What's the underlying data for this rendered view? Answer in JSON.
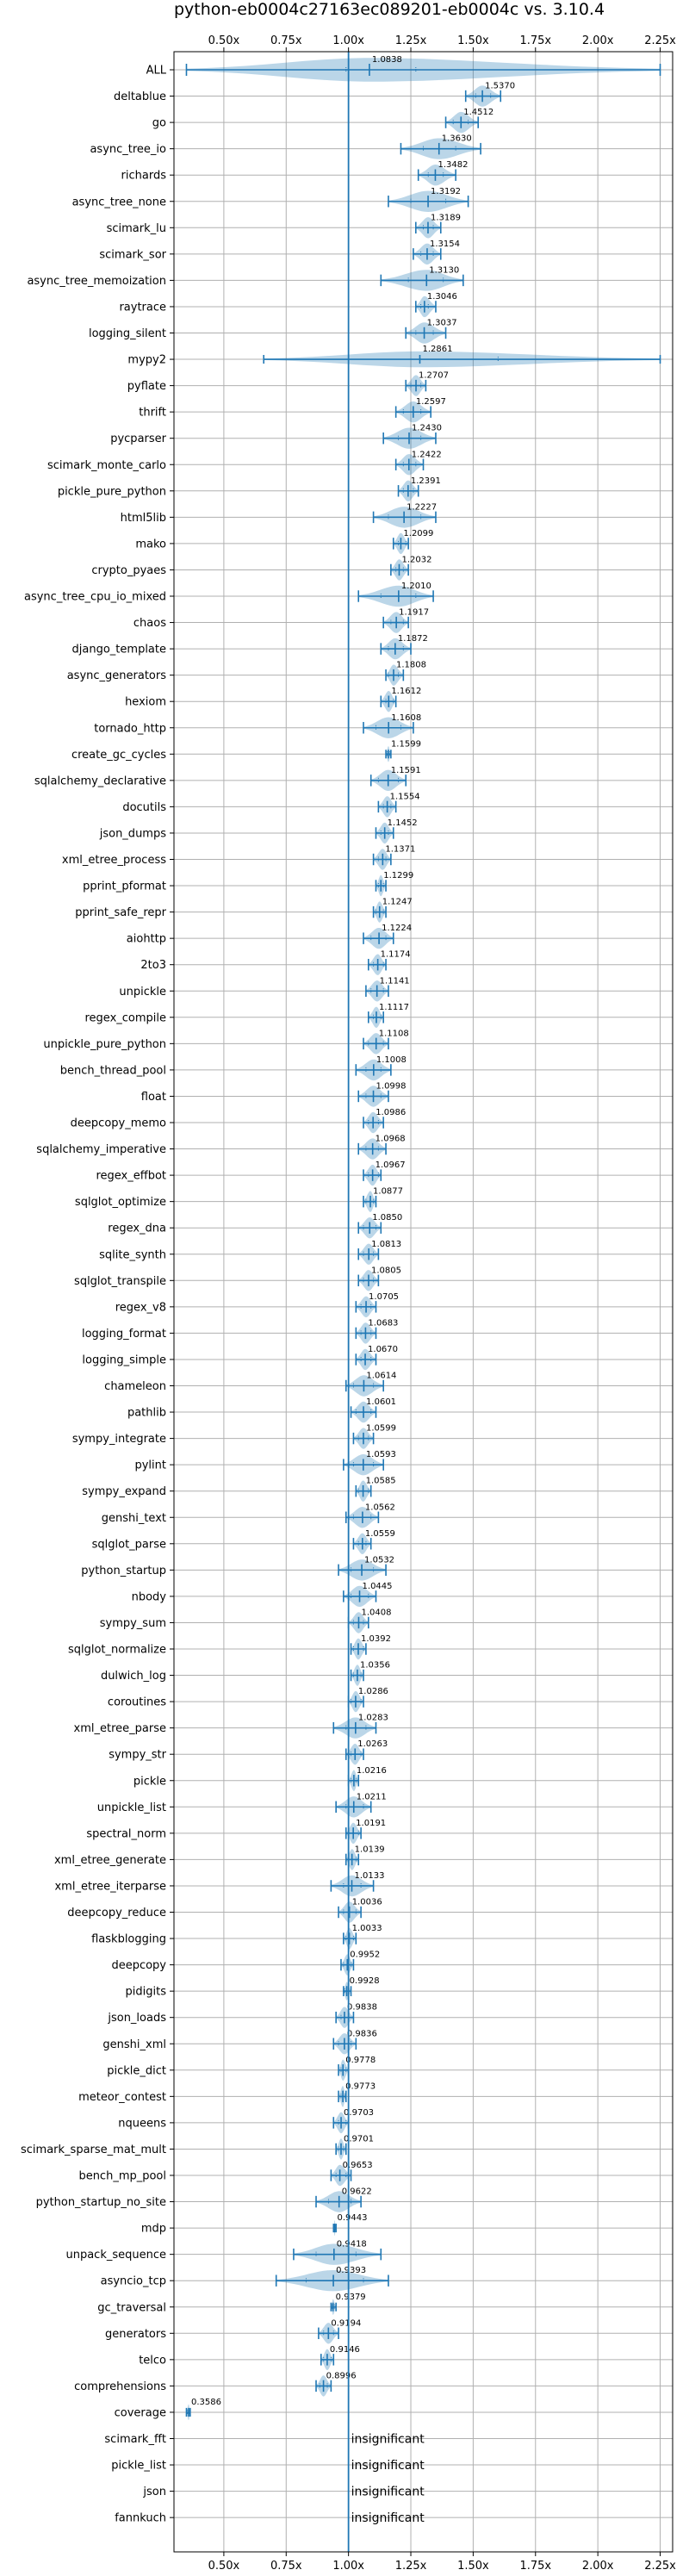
{
  "chart_data": {
    "type": "violin",
    "title": "python-eb0004c27163ec089201-eb0004c vs. 3.10.4",
    "xlim": [
      0.3,
      2.3
    ],
    "x_ticks": [
      0.5,
      0.75,
      1.0,
      1.25,
      1.5,
      1.75,
      2.0,
      2.25
    ],
    "x_tick_labels": [
      "0.50x",
      "0.75x",
      "1.00x",
      "1.25x",
      "1.50x",
      "1.75x",
      "2.00x",
      "2.25x"
    ],
    "reference_line": 1.0,
    "grid": true,
    "insignificant_label": "insignificant",
    "benchmarks": [
      {
        "name": "ALL",
        "median": "1.0838",
        "min": 0.35,
        "max": 2.25,
        "q1": 0.99,
        "q3": 1.27,
        "w": 0.9
      },
      {
        "name": "deltablue",
        "median": "1.5370",
        "min": 1.47,
        "max": 1.61,
        "q1": 1.51,
        "q3": 1.57,
        "w": 0.8
      },
      {
        "name": "go",
        "median": "1.4512",
        "min": 1.39,
        "max": 1.52,
        "q1": 1.42,
        "q3": 1.48,
        "w": 0.8
      },
      {
        "name": "async_tree_io",
        "median": "1.3630",
        "min": 1.21,
        "max": 1.53,
        "q1": 1.3,
        "q3": 1.43,
        "w": 0.8
      },
      {
        "name": "richards",
        "median": "1.3482",
        "min": 1.28,
        "max": 1.43,
        "q1": 1.32,
        "q3": 1.38,
        "w": 0.8
      },
      {
        "name": "async_tree_none",
        "median": "1.3192",
        "min": 1.16,
        "max": 1.48,
        "q1": 1.25,
        "q3": 1.39,
        "w": 0.8
      },
      {
        "name": "scimark_lu",
        "median": "1.3189",
        "min": 1.27,
        "max": 1.37,
        "q1": 1.3,
        "q3": 1.34,
        "w": 0.8
      },
      {
        "name": "scimark_sor",
        "median": "1.3154",
        "min": 1.26,
        "max": 1.37,
        "q1": 1.29,
        "q3": 1.34,
        "w": 0.8
      },
      {
        "name": "async_tree_memoization",
        "median": "1.3130",
        "min": 1.13,
        "max": 1.46,
        "q1": 1.24,
        "q3": 1.38,
        "w": 0.8
      },
      {
        "name": "raytrace",
        "median": "1.3046",
        "min": 1.27,
        "max": 1.35,
        "q1": 1.29,
        "q3": 1.32,
        "w": 0.8
      },
      {
        "name": "logging_silent",
        "median": "1.3037",
        "min": 1.23,
        "max": 1.39,
        "q1": 1.27,
        "q3": 1.34,
        "w": 0.8
      },
      {
        "name": "mypy2",
        "median": "1.2861",
        "min": 0.66,
        "max": 2.25,
        "q1": 1.0,
        "q3": 1.6,
        "w": 0.6
      },
      {
        "name": "pyflate",
        "median": "1.2707",
        "min": 1.23,
        "max": 1.31,
        "q1": 1.25,
        "q3": 1.29,
        "w": 0.8
      },
      {
        "name": "thrift",
        "median": "1.2597",
        "min": 1.19,
        "max": 1.33,
        "q1": 1.22,
        "q3": 1.29,
        "w": 0.8
      },
      {
        "name": "pycparser",
        "median": "1.2430",
        "min": 1.14,
        "max": 1.35,
        "q1": 1.2,
        "q3": 1.29,
        "w": 0.8
      },
      {
        "name": "scimark_monte_carlo",
        "median": "1.2422",
        "min": 1.19,
        "max": 1.3,
        "q1": 1.22,
        "q3": 1.27,
        "w": 0.8
      },
      {
        "name": "pickle_pure_python",
        "median": "1.2391",
        "min": 1.2,
        "max": 1.28,
        "q1": 1.22,
        "q3": 1.26,
        "w": 0.8
      },
      {
        "name": "html5lib",
        "median": "1.2227",
        "min": 1.1,
        "max": 1.35,
        "q1": 1.16,
        "q3": 1.29,
        "w": 0.8
      },
      {
        "name": "mako",
        "median": "1.2099",
        "min": 1.18,
        "max": 1.24,
        "q1": 1.2,
        "q3": 1.23,
        "w": 0.8
      },
      {
        "name": "crypto_pyaes",
        "median": "1.2032",
        "min": 1.17,
        "max": 1.24,
        "q1": 1.19,
        "q3": 1.22,
        "w": 0.8
      },
      {
        "name": "async_tree_cpu_io_mixed",
        "median": "1.2010",
        "min": 1.04,
        "max": 1.34,
        "q1": 1.13,
        "q3": 1.27,
        "w": 0.8
      },
      {
        "name": "chaos",
        "median": "1.1917",
        "min": 1.14,
        "max": 1.24,
        "q1": 1.17,
        "q3": 1.22,
        "w": 0.8
      },
      {
        "name": "django_template",
        "median": "1.1872",
        "min": 1.13,
        "max": 1.25,
        "q1": 1.16,
        "q3": 1.22,
        "w": 0.8
      },
      {
        "name": "async_generators",
        "median": "1.1808",
        "min": 1.15,
        "max": 1.22,
        "q1": 1.16,
        "q3": 1.2,
        "w": 0.8
      },
      {
        "name": "hexiom",
        "median": "1.1612",
        "min": 1.13,
        "max": 1.19,
        "q1": 1.15,
        "q3": 1.18,
        "w": 0.8
      },
      {
        "name": "tornado_http",
        "median": "1.1608",
        "min": 1.06,
        "max": 1.26,
        "q1": 1.11,
        "q3": 1.21,
        "w": 0.8
      },
      {
        "name": "create_gc_cycles",
        "median": "1.1599",
        "min": 1.15,
        "max": 1.17,
        "q1": 1.155,
        "q3": 1.165,
        "w": 0.6
      },
      {
        "name": "sqlalchemy_declarative",
        "median": "1.1591",
        "min": 1.09,
        "max": 1.23,
        "q1": 1.12,
        "q3": 1.2,
        "w": 0.8
      },
      {
        "name": "docutils",
        "median": "1.1554",
        "min": 1.12,
        "max": 1.19,
        "q1": 1.14,
        "q3": 1.17,
        "w": 0.8
      },
      {
        "name": "json_dumps",
        "median": "1.1452",
        "min": 1.11,
        "max": 1.18,
        "q1": 1.13,
        "q3": 1.16,
        "w": 0.8
      },
      {
        "name": "xml_etree_process",
        "median": "1.1371",
        "min": 1.1,
        "max": 1.17,
        "q1": 1.12,
        "q3": 1.15,
        "w": 0.8
      },
      {
        "name": "pprint_pformat",
        "median": "1.1299",
        "min": 1.11,
        "max": 1.15,
        "q1": 1.12,
        "q3": 1.14,
        "w": 0.8
      },
      {
        "name": "pprint_safe_repr",
        "median": "1.1247",
        "min": 1.1,
        "max": 1.15,
        "q1": 1.11,
        "q3": 1.14,
        "w": 0.8
      },
      {
        "name": "aiohttp",
        "median": "1.1224",
        "min": 1.06,
        "max": 1.18,
        "q1": 1.09,
        "q3": 1.15,
        "w": 0.8
      },
      {
        "name": "2to3",
        "median": "1.1174",
        "min": 1.08,
        "max": 1.15,
        "q1": 1.1,
        "q3": 1.14,
        "w": 0.8
      },
      {
        "name": "unpickle",
        "median": "1.1141",
        "min": 1.07,
        "max": 1.16,
        "q1": 1.09,
        "q3": 1.14,
        "w": 0.8
      },
      {
        "name": "regex_compile",
        "median": "1.1117",
        "min": 1.08,
        "max": 1.14,
        "q1": 1.1,
        "q3": 1.13,
        "w": 0.8
      },
      {
        "name": "unpickle_pure_python",
        "median": "1.1108",
        "min": 1.06,
        "max": 1.16,
        "q1": 1.08,
        "q3": 1.14,
        "w": 0.8
      },
      {
        "name": "bench_thread_pool",
        "median": "1.1008",
        "min": 1.03,
        "max": 1.17,
        "q1": 1.07,
        "q3": 1.13,
        "w": 0.8
      },
      {
        "name": "float",
        "median": "1.0998",
        "min": 1.04,
        "max": 1.16,
        "q1": 1.07,
        "q3": 1.13,
        "w": 0.8
      },
      {
        "name": "deepcopy_memo",
        "median": "1.0986",
        "min": 1.06,
        "max": 1.14,
        "q1": 1.08,
        "q3": 1.12,
        "w": 0.8
      },
      {
        "name": "sqlalchemy_imperative",
        "median": "1.0968",
        "min": 1.04,
        "max": 1.15,
        "q1": 1.07,
        "q3": 1.12,
        "w": 0.8
      },
      {
        "name": "regex_effbot",
        "median": "1.0967",
        "min": 1.06,
        "max": 1.13,
        "q1": 1.08,
        "q3": 1.12,
        "w": 0.8
      },
      {
        "name": "sqlglot_optimize",
        "median": "1.0877",
        "min": 1.06,
        "max": 1.11,
        "q1": 1.07,
        "q3": 1.1,
        "w": 0.8
      },
      {
        "name": "regex_dna",
        "median": "1.0850",
        "min": 1.04,
        "max": 1.13,
        "q1": 1.06,
        "q3": 1.11,
        "w": 0.8
      },
      {
        "name": "sqlite_synth",
        "median": "1.0813",
        "min": 1.04,
        "max": 1.12,
        "q1": 1.06,
        "q3": 1.1,
        "w": 0.8
      },
      {
        "name": "sqlglot_transpile",
        "median": "1.0805",
        "min": 1.04,
        "max": 1.12,
        "q1": 1.06,
        "q3": 1.1,
        "w": 0.8
      },
      {
        "name": "regex_v8",
        "median": "1.0705",
        "min": 1.03,
        "max": 1.11,
        "q1": 1.05,
        "q3": 1.09,
        "w": 0.8
      },
      {
        "name": "logging_format",
        "median": "1.0683",
        "min": 1.03,
        "max": 1.11,
        "q1": 1.05,
        "q3": 1.09,
        "w": 0.8
      },
      {
        "name": "logging_simple",
        "median": "1.0670",
        "min": 1.03,
        "max": 1.11,
        "q1": 1.05,
        "q3": 1.09,
        "w": 0.8
      },
      {
        "name": "chameleon",
        "median": "1.0614",
        "min": 0.99,
        "max": 1.14,
        "q1": 1.02,
        "q3": 1.1,
        "w": 0.8
      },
      {
        "name": "pathlib",
        "median": "1.0601",
        "min": 1.01,
        "max": 1.11,
        "q1": 1.03,
        "q3": 1.09,
        "w": 0.8
      },
      {
        "name": "sympy_integrate",
        "median": "1.0599",
        "min": 1.02,
        "max": 1.1,
        "q1": 1.04,
        "q3": 1.08,
        "w": 0.8
      },
      {
        "name": "pylint",
        "median": "1.0593",
        "min": 0.98,
        "max": 1.14,
        "q1": 1.02,
        "q3": 1.1,
        "w": 0.8
      },
      {
        "name": "sympy_expand",
        "median": "1.0585",
        "min": 1.03,
        "max": 1.09,
        "q1": 1.04,
        "q3": 1.08,
        "w": 0.8
      },
      {
        "name": "genshi_text",
        "median": "1.0562",
        "min": 0.99,
        "max": 1.12,
        "q1": 1.02,
        "q3": 1.09,
        "w": 0.8
      },
      {
        "name": "sqlglot_parse",
        "median": "1.0559",
        "min": 1.02,
        "max": 1.09,
        "q1": 1.04,
        "q3": 1.07,
        "w": 0.8
      },
      {
        "name": "python_startup",
        "median": "1.0532",
        "min": 0.96,
        "max": 1.15,
        "q1": 1.01,
        "q3": 1.1,
        "w": 0.8
      },
      {
        "name": "nbody",
        "median": "1.0445",
        "min": 0.98,
        "max": 1.11,
        "q1": 1.01,
        "q3": 1.08,
        "w": 0.8
      },
      {
        "name": "sympy_sum",
        "median": "1.0408",
        "min": 1.0,
        "max": 1.08,
        "q1": 1.02,
        "q3": 1.06,
        "w": 0.8
      },
      {
        "name": "sqlglot_normalize",
        "median": "1.0392",
        "min": 1.01,
        "max": 1.07,
        "q1": 1.02,
        "q3": 1.06,
        "w": 0.8
      },
      {
        "name": "dulwich_log",
        "median": "1.0356",
        "min": 1.01,
        "max": 1.06,
        "q1": 1.02,
        "q3": 1.05,
        "w": 0.8
      },
      {
        "name": "coroutines",
        "median": "1.0286",
        "min": 1.0,
        "max": 1.06,
        "q1": 1.01,
        "q3": 1.05,
        "w": 0.8
      },
      {
        "name": "xml_etree_parse",
        "median": "1.0283",
        "min": 0.94,
        "max": 1.11,
        "q1": 0.99,
        "q3": 1.07,
        "w": 0.8
      },
      {
        "name": "sympy_str",
        "median": "1.0263",
        "min": 0.99,
        "max": 1.06,
        "q1": 1.01,
        "q3": 1.05,
        "w": 0.8
      },
      {
        "name": "pickle",
        "median": "1.0216",
        "min": 1.0,
        "max": 1.04,
        "q1": 1.01,
        "q3": 1.03,
        "w": 0.8
      },
      {
        "name": "unpickle_list",
        "median": "1.0211",
        "min": 0.95,
        "max": 1.09,
        "q1": 0.99,
        "q3": 1.06,
        "w": 0.8
      },
      {
        "name": "spectral_norm",
        "median": "1.0191",
        "min": 0.99,
        "max": 1.05,
        "q1": 1.0,
        "q3": 1.04,
        "w": 0.8
      },
      {
        "name": "xml_etree_generate",
        "median": "1.0139",
        "min": 0.99,
        "max": 1.04,
        "q1": 1.0,
        "q3": 1.03,
        "w": 0.8
      },
      {
        "name": "xml_etree_iterparse",
        "median": "1.0133",
        "min": 0.93,
        "max": 1.1,
        "q1": 0.98,
        "q3": 1.05,
        "w": 0.8
      },
      {
        "name": "deepcopy_reduce",
        "median": "1.0036",
        "min": 0.96,
        "max": 1.05,
        "q1": 0.98,
        "q3": 1.03,
        "w": 0.8
      },
      {
        "name": "flaskblogging",
        "median": "1.0033",
        "min": 0.98,
        "max": 1.03,
        "q1": 0.99,
        "q3": 1.02,
        "w": 0.8
      },
      {
        "name": "deepcopy",
        "median": "0.9952",
        "min": 0.97,
        "max": 1.02,
        "q1": 0.98,
        "q3": 1.01,
        "w": 0.8
      },
      {
        "name": "pidigits",
        "median": "0.9928",
        "min": 0.98,
        "max": 1.01,
        "q1": 0.985,
        "q3": 1.0,
        "w": 0.7
      },
      {
        "name": "json_loads",
        "median": "0.9838",
        "min": 0.95,
        "max": 1.02,
        "q1": 0.97,
        "q3": 1.0,
        "w": 0.8
      },
      {
        "name": "genshi_xml",
        "median": "0.9836",
        "min": 0.94,
        "max": 1.03,
        "q1": 0.96,
        "q3": 1.01,
        "w": 0.8
      },
      {
        "name": "pickle_dict",
        "median": "0.9778",
        "min": 0.96,
        "max": 1.0,
        "q1": 0.97,
        "q3": 0.99,
        "w": 0.8
      },
      {
        "name": "meteor_contest",
        "median": "0.9773",
        "min": 0.96,
        "max": 0.99,
        "q1": 0.97,
        "q3": 0.985,
        "w": 0.8
      },
      {
        "name": "nqueens",
        "median": "0.9703",
        "min": 0.94,
        "max": 1.0,
        "q1": 0.96,
        "q3": 0.99,
        "w": 0.8
      },
      {
        "name": "scimark_sparse_mat_mult",
        "median": "0.9701",
        "min": 0.95,
        "max": 0.99,
        "q1": 0.96,
        "q3": 0.98,
        "w": 0.8
      },
      {
        "name": "bench_mp_pool",
        "median": "0.9653",
        "min": 0.93,
        "max": 1.01,
        "q1": 0.95,
        "q3": 0.99,
        "w": 0.8
      },
      {
        "name": "python_startup_no_site",
        "median": "0.9622",
        "min": 0.87,
        "max": 1.05,
        "q1": 0.92,
        "q3": 1.01,
        "w": 0.8
      },
      {
        "name": "mdp",
        "median": "0.9443",
        "min": 0.94,
        "max": 0.95,
        "q1": 0.942,
        "q3": 0.947,
        "w": 0.6
      },
      {
        "name": "unpack_sequence",
        "median": "0.9418",
        "min": 0.78,
        "max": 1.13,
        "q1": 0.87,
        "q3": 1.03,
        "w": 0.8
      },
      {
        "name": "asyncio_tcp",
        "median": "0.9393",
        "min": 0.71,
        "max": 1.16,
        "q1": 0.83,
        "q3": 1.06,
        "w": 0.8
      },
      {
        "name": "gc_traversal",
        "median": "0.9379",
        "min": 0.93,
        "max": 0.95,
        "q1": 0.934,
        "q3": 0.943,
        "w": 0.6
      },
      {
        "name": "generators",
        "median": "0.9194",
        "min": 0.88,
        "max": 0.96,
        "q1": 0.9,
        "q3": 0.94,
        "w": 0.8
      },
      {
        "name": "telco",
        "median": "0.9146",
        "min": 0.89,
        "max": 0.94,
        "q1": 0.9,
        "q3": 0.93,
        "w": 0.8
      },
      {
        "name": "comprehensions",
        "median": "0.8996",
        "min": 0.87,
        "max": 0.93,
        "q1": 0.885,
        "q3": 0.915,
        "w": 0.8
      },
      {
        "name": "coverage",
        "median": "0.3586",
        "min": 0.35,
        "max": 0.365,
        "q1": 0.354,
        "q3": 0.362,
        "w": 0.6
      },
      {
        "name": "scimark_fft",
        "insignificant": true
      },
      {
        "name": "pickle_list",
        "insignificant": true
      },
      {
        "name": "json",
        "insignificant": true
      },
      {
        "name": "fannkuch",
        "insignificant": true
      }
    ]
  }
}
